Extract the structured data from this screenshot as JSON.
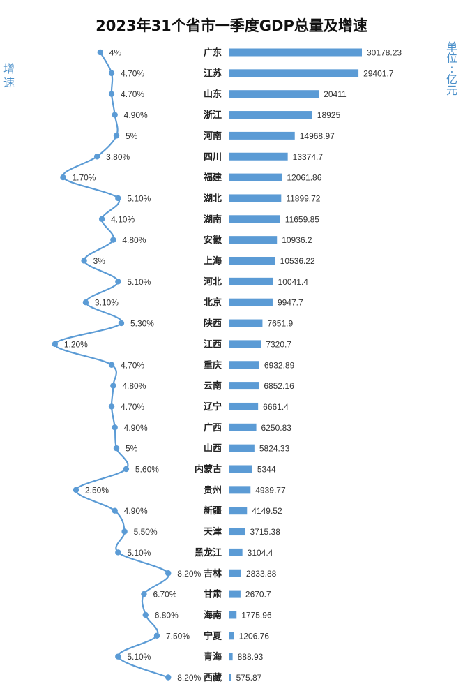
{
  "chart_data": {
    "type": "bar",
    "title": "2023年31个省市一季度GDP总量及增速",
    "left_axis_label": "增速",
    "right_axis_label": "单位:亿元",
    "categories": [
      "广东",
      "江苏",
      "山东",
      "浙江",
      "河南",
      "四川",
      "福建",
      "湖北",
      "湖南",
      "安徽",
      "上海",
      "河北",
      "北京",
      "陕西",
      "江西",
      "重庆",
      "云南",
      "辽宁",
      "广西",
      "山西",
      "内蒙古",
      "贵州",
      "新疆",
      "天津",
      "黑龙江",
      "吉林",
      "甘肃",
      "海南",
      "宁夏",
      "青海",
      "西藏"
    ],
    "gdp_values": [
      "30178.23",
      "29401.7",
      "20411",
      "18925",
      "14968.97",
      "13374.7",
      "12061.86",
      "11899.72",
      "11659.85",
      "10936.2",
      "10536.22",
      "10041.4",
      "9947.7",
      "7651.9",
      "7320.7",
      "6932.89",
      "6852.16",
      "6661.4",
      "6250.83",
      "5824.33",
      "5344",
      "4939.77",
      "4149.52",
      "3715.38",
      "3104.4",
      "2833.88",
      "2670.7",
      "1775.96",
      "1206.76",
      "888.93",
      "575.87"
    ],
    "growth_labels": [
      "4%",
      "4.70%",
      "4.70%",
      "4.90%",
      "5%",
      "3.80%",
      "1.70%",
      "5.10%",
      "4.10%",
      "4.80%",
      "3%",
      "5.10%",
      "3.10%",
      "5.30%",
      "1.20%",
      "4.70%",
      "4.80%",
      "4.70%",
      "4.90%",
      "5%",
      "5.60%",
      "2.50%",
      "4.90%",
      "5.50%",
      "5.10%",
      "8.20%",
      "6.70%",
      "6.80%",
      "7.50%",
      "5.10%",
      "8.20%"
    ],
    "bar_xlim": [
      0,
      30178.23
    ],
    "bar_color": "#5b9bd5",
    "line_color": "#5b9bd5"
  }
}
